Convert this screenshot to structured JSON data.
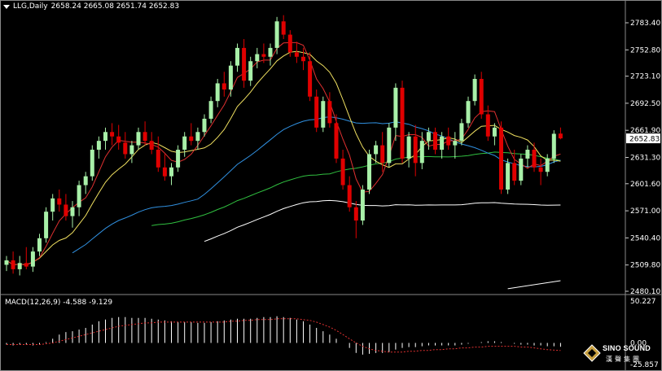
{
  "header": {
    "symbol_timeframe": "LLG,Daily",
    "ohlc": "2658.24 2665.08 2651.74 2652.83"
  },
  "macd": {
    "label": "MACD(12,26,9) -4.588 -9.129",
    "ylim": [
      -25.857,
      50.227
    ],
    "ticks": [
      "50.227",
      "0.00",
      "-25.857"
    ]
  },
  "logo": {
    "title": "SINO SOUND",
    "subtitle": "漢聲集團"
  },
  "colors": {
    "background": "#000000",
    "bull": "#A8F0A8",
    "bear": "#E00000",
    "ma_fast": "#E03030",
    "ma_yellow": "#F0E060",
    "ma_blue": "#3090E0",
    "ma_green": "#30C040",
    "ma_white": "#FFFFFF",
    "macd_hist": "#FFFFFF",
    "macd_signal": "#E03030",
    "price_tag": "#FFFFFF"
  },
  "chart_data": {
    "type": "candlestick",
    "ylim": [
      2480.1,
      2783.4
    ],
    "y_ticks": [
      "2783.40",
      "2752.80",
      "2723.10",
      "2692.50",
      "2661.90",
      "2631.30",
      "2601.60",
      "2571.00",
      "2540.40",
      "2509.80",
      "2480.10"
    ],
    "current_price": "2652.83",
    "candles": [
      [
        2510,
        2520,
        2503,
        2515
      ],
      [
        2515,
        2525,
        2500,
        2505
      ],
      [
        2505,
        2520,
        2498,
        2512
      ],
      [
        2512,
        2530,
        2505,
        2508
      ],
      [
        2508,
        2530,
        2502,
        2525
      ],
      [
        2525,
        2545,
        2520,
        2540
      ],
      [
        2540,
        2575,
        2535,
        2570
      ],
      [
        2570,
        2590,
        2560,
        2585
      ],
      [
        2585,
        2595,
        2570,
        2578
      ],
      [
        2578,
        2590,
        2560,
        2565
      ],
      [
        2565,
        2582,
        2552,
        2575
      ],
      [
        2575,
        2605,
        2565,
        2600
      ],
      [
        2600,
        2615,
        2590,
        2610
      ],
      [
        2610,
        2645,
        2605,
        2640
      ],
      [
        2640,
        2655,
        2630,
        2650
      ],
      [
        2650,
        2665,
        2640,
        2660
      ],
      [
        2660,
        2670,
        2645,
        2655
      ],
      [
        2655,
        2668,
        2640,
        2648
      ],
      [
        2648,
        2660,
        2630,
        2635
      ],
      [
        2635,
        2650,
        2625,
        2645
      ],
      [
        2645,
        2665,
        2640,
        2660
      ],
      [
        2660,
        2672,
        2645,
        2650
      ],
      [
        2650,
        2660,
        2635,
        2640
      ],
      [
        2640,
        2655,
        2615,
        2620
      ],
      [
        2620,
        2635,
        2605,
        2610
      ],
      [
        2610,
        2625,
        2600,
        2620
      ],
      [
        2620,
        2645,
        2615,
        2640
      ],
      [
        2640,
        2660,
        2632,
        2655
      ],
      [
        2655,
        2670,
        2645,
        2650
      ],
      [
        2650,
        2665,
        2640,
        2660
      ],
      [
        2660,
        2680,
        2655,
        2675
      ],
      [
        2675,
        2700,
        2670,
        2695
      ],
      [
        2695,
        2720,
        2688,
        2715
      ],
      [
        2715,
        2728,
        2700,
        2708
      ],
      [
        2708,
        2740,
        2700,
        2735
      ],
      [
        2735,
        2760,
        2728,
        2755
      ],
      [
        2755,
        2765,
        2710,
        2718
      ],
      [
        2718,
        2745,
        2712,
        2740
      ],
      [
        2740,
        2755,
        2732,
        2748
      ],
      [
        2748,
        2760,
        2738,
        2745
      ],
      [
        2745,
        2760,
        2735,
        2755
      ],
      [
        2755,
        2790,
        2748,
        2785
      ],
      [
        2785,
        2792,
        2765,
        2770
      ],
      [
        2770,
        2775,
        2745,
        2750
      ],
      [
        2750,
        2762,
        2738,
        2745
      ],
      [
        2745,
        2755,
        2730,
        2740
      ],
      [
        2740,
        2750,
        2695,
        2700
      ],
      [
        2700,
        2708,
        2660,
        2665
      ],
      [
        2665,
        2700,
        2660,
        2695
      ],
      [
        2695,
        2705,
        2665,
        2670
      ],
      [
        2670,
        2680,
        2625,
        2630
      ],
      [
        2630,
        2640,
        2595,
        2600
      ],
      [
        2600,
        2610,
        2570,
        2575
      ],
      [
        2575,
        2582,
        2540,
        2560
      ],
      [
        2560,
        2600,
        2555,
        2595
      ],
      [
        2595,
        2640,
        2590,
        2635
      ],
      [
        2635,
        2650,
        2625,
        2645
      ],
      [
        2645,
        2660,
        2615,
        2625
      ],
      [
        2625,
        2670,
        2620,
        2665
      ],
      [
        2665,
        2715,
        2650,
        2710
      ],
      [
        2710,
        2718,
        2625,
        2630
      ],
      [
        2630,
        2660,
        2620,
        2655
      ],
      [
        2655,
        2668,
        2610,
        2625
      ],
      [
        2625,
        2660,
        2618,
        2650
      ],
      [
        2650,
        2665,
        2640,
        2660
      ],
      [
        2660,
        2665,
        2635,
        2640
      ],
      [
        2640,
        2660,
        2630,
        2655
      ],
      [
        2655,
        2665,
        2640,
        2645
      ],
      [
        2645,
        2660,
        2630,
        2650
      ],
      [
        2650,
        2675,
        2645,
        2670
      ],
      [
        2670,
        2700,
        2665,
        2695
      ],
      [
        2695,
        2725,
        2690,
        2720
      ],
      [
        2720,
        2728,
        2675,
        2680
      ],
      [
        2680,
        2690,
        2650,
        2655
      ],
      [
        2655,
        2670,
        2645,
        2665
      ],
      [
        2665,
        2672,
        2590,
        2595
      ],
      [
        2595,
        2630,
        2590,
        2625
      ],
      [
        2625,
        2640,
        2600,
        2605
      ],
      [
        2605,
        2635,
        2600,
        2630
      ],
      [
        2630,
        2645,
        2620,
        2640
      ],
      [
        2640,
        2648,
        2615,
        2620
      ],
      [
        2620,
        2630,
        2600,
        2615
      ],
      [
        2615,
        2635,
        2610,
        2630
      ],
      [
        2630,
        2662,
        2625,
        2658
      ],
      [
        2658.24,
        2665.08,
        2651.74,
        2652.83
      ]
    ],
    "macd_hist": [
      -2,
      -3,
      -2,
      -2,
      -3,
      -2,
      1,
      5,
      10,
      13,
      14,
      16,
      18,
      22,
      26,
      28,
      30,
      31,
      31,
      30,
      30,
      30,
      29,
      28,
      27,
      26,
      25,
      25,
      25,
      24,
      24,
      25,
      26,
      27,
      28,
      29,
      29,
      29,
      30,
      31,
      31,
      32,
      31,
      30,
      28,
      26,
      22,
      18,
      14,
      10,
      5,
      0,
      -6,
      -12,
      -14,
      -13,
      -12,
      -12,
      -11,
      -8,
      -6,
      -5,
      -5,
      -4,
      -3,
      -3,
      -3,
      -3,
      -3,
      -2,
      -1,
      0,
      1,
      2,
      2,
      1,
      0,
      -1,
      -2,
      -2,
      -3,
      -3,
      -4,
      -4,
      -4.6
    ],
    "macd_signal": [
      -2,
      -2,
      -2,
      -2,
      -2,
      -2,
      -1,
      0,
      2,
      4,
      6,
      8,
      10,
      12,
      14,
      16,
      18,
      20,
      21,
      22,
      23,
      24,
      24,
      25,
      25,
      25,
      25,
      25,
      25,
      25,
      25,
      25,
      25,
      25,
      26,
      26,
      27,
      27,
      28,
      28,
      28,
      29,
      29,
      29,
      29,
      28,
      27,
      25,
      22,
      19,
      15,
      10,
      5,
      0,
      -4,
      -7,
      -9,
      -10,
      -11,
      -11,
      -11,
      -10,
      -10,
      -9,
      -9,
      -8,
      -8,
      -7,
      -7,
      -6,
      -6,
      -5,
      -5,
      -4,
      -4,
      -4,
      -4,
      -4,
      -5,
      -5,
      -6,
      -7,
      -8,
      -8.6,
      -9.1
    ]
  }
}
